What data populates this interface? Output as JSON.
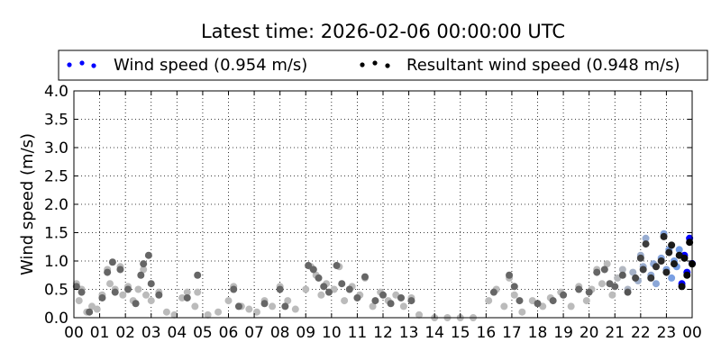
{
  "chart_data": {
    "type": "scatter",
    "title": "Latest time: 2026-02-06 00:00:00 UTC",
    "xlabel": "",
    "ylabel": "Wind speed (m/s)",
    "xlim": [
      0,
      24
    ],
    "ylim": [
      0,
      4.0
    ],
    "grid": true,
    "legend_placement": "top",
    "x_tick_labels": [
      "00",
      "01",
      "02",
      "03",
      "04",
      "05",
      "06",
      "07",
      "08",
      "09",
      "10",
      "11",
      "12",
      "13",
      "14",
      "15",
      "16",
      "17",
      "18",
      "19",
      "20",
      "21",
      "22",
      "23",
      "00"
    ],
    "y_tick_labels": [
      "0.0",
      "0.5",
      "1.0",
      "1.5",
      "2.0",
      "2.5",
      "3.0",
      "3.5",
      "4.0"
    ],
    "series": [
      {
        "name": "Wind speed (0.954 m/s)",
        "color": "#0000ff",
        "old_color": "#bbbbbb",
        "points": [
          [
            0.1,
            0.6
          ],
          [
            0.2,
            0.3
          ],
          [
            0.3,
            0.5
          ],
          [
            0.5,
            0.1
          ],
          [
            0.7,
            0.2
          ],
          [
            0.9,
            0.15
          ],
          [
            1.1,
            0.4
          ],
          [
            1.3,
            0.85
          ],
          [
            1.4,
            0.6
          ],
          [
            1.6,
            0.5
          ],
          [
            1.8,
            0.9
          ],
          [
            1.9,
            0.4
          ],
          [
            2.1,
            0.55
          ],
          [
            2.3,
            0.3
          ],
          [
            2.5,
            0.5
          ],
          [
            2.7,
            0.85
          ],
          [
            2.8,
            0.4
          ],
          [
            3.0,
            0.3
          ],
          [
            3.3,
            0.45
          ],
          [
            3.6,
            0.1
          ],
          [
            3.9,
            0.05
          ],
          [
            4.2,
            0.35
          ],
          [
            4.4,
            0.45
          ],
          [
            4.7,
            0.2
          ],
          [
            4.8,
            0.45
          ],
          [
            5.2,
            0.05
          ],
          [
            5.6,
            0.1
          ],
          [
            6.0,
            0.3
          ],
          [
            6.2,
            0.55
          ],
          [
            6.5,
            0.2
          ],
          [
            6.8,
            0.15
          ],
          [
            7.1,
            0.1
          ],
          [
            7.4,
            0.3
          ],
          [
            7.7,
            0.2
          ],
          [
            8.0,
            0.55
          ],
          [
            8.3,
            0.3
          ],
          [
            8.6,
            0.15
          ],
          [
            9.0,
            0.5
          ],
          [
            9.2,
            0.9
          ],
          [
            9.4,
            0.75
          ],
          [
            9.6,
            0.4
          ],
          [
            9.8,
            0.6
          ],
          [
            10.1,
            0.5
          ],
          [
            10.3,
            0.9
          ],
          [
            10.5,
            0.3
          ],
          [
            10.8,
            0.55
          ],
          [
            11.1,
            0.4
          ],
          [
            11.3,
            0.7
          ],
          [
            11.6,
            0.2
          ],
          [
            11.9,
            0.45
          ],
          [
            12.2,
            0.3
          ],
          [
            12.5,
            0.4
          ],
          [
            12.8,
            0.2
          ],
          [
            13.1,
            0.35
          ],
          [
            13.4,
            0.05
          ],
          [
            14.0,
            0.0
          ],
          [
            14.5,
            0.0
          ],
          [
            15.0,
            0.0
          ],
          [
            15.5,
            0.0
          ],
          [
            16.1,
            0.3
          ],
          [
            16.4,
            0.5
          ],
          [
            16.7,
            0.2
          ],
          [
            16.9,
            0.7
          ],
          [
            17.1,
            0.4
          ],
          [
            17.4,
            0.1
          ],
          [
            17.8,
            0.3
          ],
          [
            18.2,
            0.2
          ],
          [
            18.5,
            0.35
          ],
          [
            18.9,
            0.45
          ],
          [
            19.3,
            0.2
          ],
          [
            19.6,
            0.55
          ],
          [
            19.9,
            0.3
          ],
          [
            20.1,
            0.5
          ],
          [
            20.3,
            0.85
          ],
          [
            20.5,
            0.6
          ],
          [
            20.7,
            0.95
          ],
          [
            20.9,
            0.4
          ],
          [
            21.1,
            0.7
          ],
          [
            21.3,
            0.85
          ],
          [
            21.5,
            0.5
          ],
          [
            21.7,
            0.8
          ],
          [
            21.9,
            0.65
          ],
          [
            22.0,
            1.1
          ],
          [
            22.1,
            0.9
          ],
          [
            22.2,
            1.4
          ],
          [
            22.4,
            0.75
          ],
          [
            22.5,
            0.95
          ],
          [
            22.6,
            0.6
          ],
          [
            22.8,
            1.05
          ],
          [
            22.9,
            1.48
          ],
          [
            23.0,
            0.85
          ],
          [
            23.1,
            1.2
          ],
          [
            23.2,
            0.7
          ],
          [
            23.3,
            1.0
          ],
          [
            23.4,
            0.9
          ],
          [
            23.5,
            1.2
          ],
          [
            23.6,
            0.6
          ],
          [
            23.7,
            1.1
          ],
          [
            23.8,
            0.8
          ],
          [
            23.9,
            1.4
          ],
          [
            24.0,
            0.954
          ]
        ]
      },
      {
        "name": "Resultant wind speed (0.948 m/s)",
        "color": "#000000",
        "old_color": "#666666",
        "points": [
          [
            0.1,
            0.55
          ],
          [
            0.3,
            0.45
          ],
          [
            0.6,
            0.1
          ],
          [
            1.1,
            0.35
          ],
          [
            1.3,
            0.8
          ],
          [
            1.5,
            0.98
          ],
          [
            1.6,
            0.45
          ],
          [
            1.8,
            0.85
          ],
          [
            2.1,
            0.5
          ],
          [
            2.4,
            0.25
          ],
          [
            2.6,
            0.75
          ],
          [
            2.7,
            0.95
          ],
          [
            2.9,
            1.1
          ],
          [
            3.0,
            0.6
          ],
          [
            3.3,
            0.4
          ],
          [
            4.4,
            0.35
          ],
          [
            4.8,
            0.75
          ],
          [
            6.2,
            0.5
          ],
          [
            6.4,
            0.2
          ],
          [
            7.4,
            0.25
          ],
          [
            8.0,
            0.5
          ],
          [
            8.2,
            0.2
          ],
          [
            9.1,
            0.92
          ],
          [
            9.3,
            0.85
          ],
          [
            9.5,
            0.7
          ],
          [
            9.7,
            0.55
          ],
          [
            9.9,
            0.45
          ],
          [
            10.2,
            0.92
          ],
          [
            10.4,
            0.6
          ],
          [
            10.7,
            0.5
          ],
          [
            11.0,
            0.35
          ],
          [
            11.3,
            0.72
          ],
          [
            11.7,
            0.3
          ],
          [
            12.0,
            0.4
          ],
          [
            12.3,
            0.25
          ],
          [
            12.7,
            0.35
          ],
          [
            13.1,
            0.3
          ],
          [
            16.3,
            0.45
          ],
          [
            16.9,
            0.75
          ],
          [
            17.1,
            0.55
          ],
          [
            17.3,
            0.3
          ],
          [
            18.0,
            0.25
          ],
          [
            18.6,
            0.3
          ],
          [
            19.0,
            0.4
          ],
          [
            19.6,
            0.5
          ],
          [
            20.0,
            0.45
          ],
          [
            20.3,
            0.8
          ],
          [
            20.6,
            0.85
          ],
          [
            20.8,
            0.6
          ],
          [
            21.0,
            0.55
          ],
          [
            21.3,
            0.75
          ],
          [
            21.5,
            0.45
          ],
          [
            21.8,
            0.7
          ],
          [
            22.0,
            1.05
          ],
          [
            22.1,
            0.85
          ],
          [
            22.2,
            1.3
          ],
          [
            22.4,
            0.7
          ],
          [
            22.6,
            0.9
          ],
          [
            22.8,
            1.0
          ],
          [
            22.9,
            1.43
          ],
          [
            23.0,
            0.8
          ],
          [
            23.1,
            1.15
          ],
          [
            23.2,
            1.28
          ],
          [
            23.3,
            0.95
          ],
          [
            23.5,
            1.1
          ],
          [
            23.6,
            0.55
          ],
          [
            23.7,
            1.05
          ],
          [
            23.8,
            0.75
          ],
          [
            23.9,
            1.33
          ],
          [
            24.0,
            0.948
          ]
        ]
      }
    ]
  }
}
